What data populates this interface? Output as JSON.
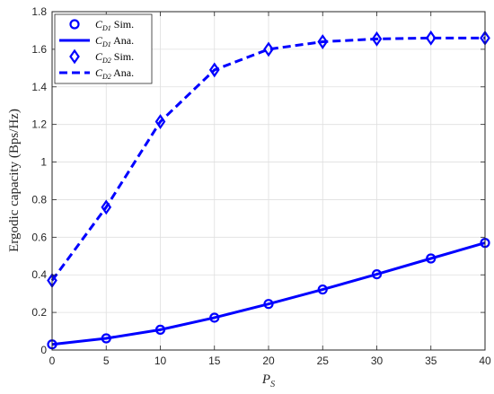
{
  "chart_data": {
    "type": "line",
    "title": "",
    "xlabel": {
      "main": "P",
      "sub": "S"
    },
    "ylabel": "Ergodic capacity (Bps/Hz)",
    "xlim": [
      0,
      40
    ],
    "ylim": [
      0,
      1.8
    ],
    "x_ticks": [
      0,
      5,
      10,
      15,
      20,
      25,
      30,
      35,
      40
    ],
    "y_ticks": [
      0,
      0.2,
      0.4,
      0.6,
      0.8,
      1,
      1.2,
      1.4,
      1.6,
      1.8
    ],
    "x_tick_labels": [
      "0",
      "5",
      "10",
      "15",
      "20",
      "25",
      "30",
      "35",
      "40"
    ],
    "y_tick_labels": [
      "0",
      "0.2",
      "0.4",
      "0.6",
      "0.8",
      "1",
      "1.2",
      "1.4",
      "1.6",
      "1.8"
    ],
    "grid": true,
    "legend_position": "top-left",
    "color": "#0000ff",
    "series": [
      {
        "name": "Sim.",
        "symbol": "C",
        "sub": "D1",
        "style": "marker-circle",
        "x": [
          0,
          5,
          10,
          15,
          20,
          25,
          30,
          35,
          40
        ],
        "y": [
          0.03,
          0.062,
          0.108,
          0.172,
          0.245,
          0.322,
          0.403,
          0.487,
          0.57
        ]
      },
      {
        "name": "Ana.",
        "symbol": "C",
        "sub": "D1",
        "style": "solid",
        "x": [
          0,
          5,
          10,
          15,
          20,
          25,
          30,
          35,
          40
        ],
        "y": [
          0.03,
          0.062,
          0.108,
          0.172,
          0.245,
          0.322,
          0.403,
          0.487,
          0.57
        ]
      },
      {
        "name": "Sim.",
        "symbol": "C",
        "sub": "D2",
        "style": "marker-diamond",
        "x": [
          0,
          5,
          10,
          15,
          20,
          25,
          30,
          35,
          40
        ],
        "y": [
          0.37,
          0.76,
          1.215,
          1.49,
          1.6,
          1.64,
          1.655,
          1.66,
          1.66
        ]
      },
      {
        "name": "Ana.",
        "symbol": "C",
        "sub": "D2",
        "style": "dashed",
        "x": [
          0,
          5,
          10,
          15,
          20,
          25,
          30,
          35,
          40
        ],
        "y": [
          0.37,
          0.76,
          1.215,
          1.49,
          1.6,
          1.64,
          1.655,
          1.66,
          1.66
        ]
      }
    ]
  }
}
